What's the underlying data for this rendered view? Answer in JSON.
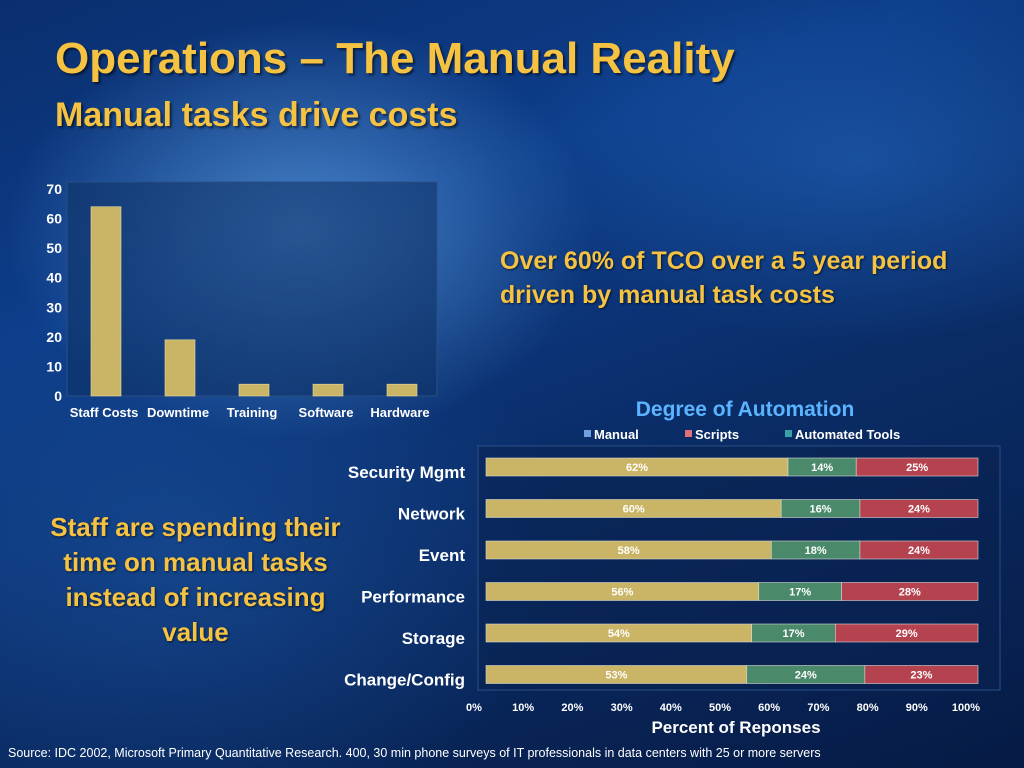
{
  "slide": {
    "title": "Operations – The Manual Reality",
    "subtitle": "Manual tasks drive costs",
    "callout_right": "Over 60% of TCO over a 5 year period driven by manual task costs",
    "callout_left": "Staff are spending their time on manual tasks instead of increasing value",
    "source": "Source: IDC 2002,  Microsoft Primary Quantitative Research. 400, 30 min phone surveys of IT professionals in data centers with 25 or more servers"
  },
  "colors": {
    "bar_gold": "#c9b565",
    "manual": "#c9b565",
    "scripts": "#4a8a6a",
    "automated": "#b5434f",
    "legend_manual_swatch": "#6fa0e0",
    "legend_scripts_swatch": "#e0707a",
    "legend_automated_swatch": "#3aa0a8",
    "title_gold": "#f5c242",
    "chart_title_blue": "#5ab4ff"
  },
  "chart_data": [
    {
      "type": "bar",
      "categories": [
        "Staff Costs",
        "Downtime",
        "Training",
        "Software",
        "Hardware"
      ],
      "values": [
        64,
        19,
        4,
        4,
        4
      ],
      "ylim": [
        0,
        70
      ],
      "yticks": [
        "0",
        "10",
        "20",
        "30",
        "40",
        "50",
        "60",
        "70"
      ],
      "xlabel": "",
      "ylabel": "",
      "grid": false,
      "legend": null
    },
    {
      "type": "bar",
      "orientation": "horizontal",
      "stacked": true,
      "title": "Degree of Automation",
      "xlabel": "Percent of Reponses",
      "xlim": [
        0,
        100
      ],
      "xticks": [
        "0%",
        "10%",
        "20%",
        "30%",
        "40%",
        "50%",
        "60%",
        "70%",
        "80%",
        "90%",
        "100%"
      ],
      "categories": [
        "Security Mgmt",
        "Network",
        "Event",
        "Performance",
        "Storage",
        "Change/Config"
      ],
      "series": [
        {
          "name": "Manual",
          "values": [
            62,
            60,
            58,
            56,
            54,
            53
          ],
          "labels": [
            "62%",
            "60%",
            "58%",
            "56%",
            "54%",
            "53%"
          ]
        },
        {
          "name": "Scripts",
          "values": [
            14,
            16,
            18,
            17,
            17,
            24
          ],
          "labels": [
            "14%",
            "16%",
            "18%",
            "17%",
            "17%",
            "24%"
          ]
        },
        {
          "name": "Automated Tools",
          "values": [
            25,
            24,
            24,
            28,
            29,
            23
          ],
          "labels": [
            "25%",
            "24%",
            "24%",
            "28%",
            "29%",
            "23%"
          ]
        }
      ],
      "legend": "top",
      "grid": false
    }
  ]
}
